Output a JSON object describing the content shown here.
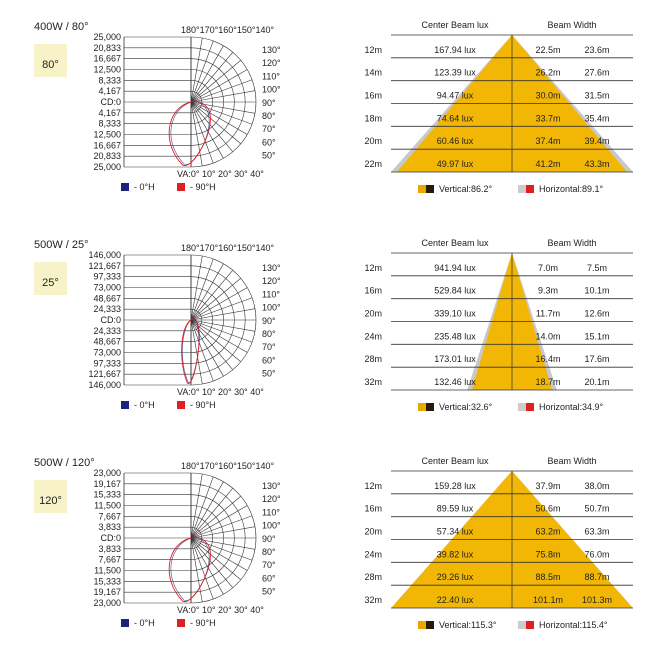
{
  "charts_meta": {
    "polar_top_angles": [
      "180°",
      "170°",
      "160°",
      "150°",
      "140°"
    ],
    "polar_right_angles": [
      "130°",
      "120°",
      "110°",
      "100°",
      "90°",
      "80°",
      "70°",
      "60°",
      "50°"
    ],
    "polar_bottom_label": "VA:0° 10° 20° 30° 40°",
    "legend_0h": "- 0°H",
    "legend_90h": "- 90°H",
    "beam_col1": "Center Beam lux",
    "beam_col2": "Beam Width"
  },
  "colors": {
    "beam_fill": "#f2b705",
    "beam_gray": "#c8c8c8",
    "vertical_swatch": "#e8a800",
    "horizontal_swatch": "#e02020",
    "polar_0h": "#1a237e",
    "polar_90h": "#e02020",
    "red_text": "#c2391f"
  },
  "chart_data": [
    {
      "type": "polar",
      "title": "400W / 80°",
      "badge": "80°",
      "r_ticks": [
        "25,000",
        "20,833",
        "16,667",
        "12,500",
        "8,333",
        "4,167",
        "CD:0",
        "4,167",
        "8,333",
        "12,500",
        "16,667",
        "20,833",
        "25,000"
      ],
      "rmax": 25000
    },
    {
      "type": "table",
      "title": "400W / 80° beam",
      "rows": [
        {
          "d": "12m",
          "lux": "167.94 lux",
          "v": "22.5m",
          "h": "23.6m"
        },
        {
          "d": "14m",
          "lux": "123.39 lux",
          "v": "26.2m",
          "h": "27.6m"
        },
        {
          "d": "16m",
          "lux": "94.47 lux",
          "v": "30.0m",
          "h": "31.5m"
        },
        {
          "d": "18m",
          "lux": "74.64 lux",
          "v": "33.7m",
          "h": "35.4m"
        },
        {
          "d": "20m",
          "lux": "60.46 lux",
          "v": "37.4m",
          "h": "39.4m"
        },
        {
          "d": "22m",
          "lux": "49.97 lux",
          "v": "41.2m",
          "h": "43.3m"
        }
      ],
      "vertical": "Vertical:86.2°",
      "horizontal": "Horizontal:89.1°",
      "vertical_angle": 86.2,
      "horizontal_angle": 89.1
    },
    {
      "type": "polar",
      "title": "500W / 25°",
      "badge": "25°",
      "r_ticks": [
        "146,000",
        "121,667",
        "97,333",
        "73,000",
        "48,667",
        "24,333",
        "CD:0",
        "24,333",
        "48,667",
        "73,000",
        "97,333",
        "121,667",
        "146,000"
      ],
      "rmax": 146000
    },
    {
      "type": "table",
      "title": "500W / 25° beam",
      "rows": [
        {
          "d": "12m",
          "lux": "941.94 lux",
          "v": "7.0m",
          "h": "7.5m"
        },
        {
          "d": "16m",
          "lux": "529.84 lux",
          "v": "9.3m",
          "h": "10.1m"
        },
        {
          "d": "20m",
          "lux": "339.10 lux",
          "v": "11.7m",
          "h": "12.6m"
        },
        {
          "d": "24m",
          "lux": "235.48 lux",
          "v": "14.0m",
          "h": "15.1m"
        },
        {
          "d": "28m",
          "lux": "173.01 lux",
          "v": "16.4m",
          "h": "17.6m"
        },
        {
          "d": "32m",
          "lux": "132.46 lux",
          "v": "18.7m",
          "h": "20.1m"
        }
      ],
      "vertical": "Vertical:32.6°",
      "horizontal": "Horizontal:34.9°",
      "vertical_angle": 32.6,
      "horizontal_angle": 34.9
    },
    {
      "type": "polar",
      "title": "500W / 120°",
      "badge": "120°",
      "r_ticks": [
        "23,000",
        "19,167",
        "15,333",
        "11,500",
        "7,667",
        "3,833",
        "CD:0",
        "3,833",
        "7,667",
        "11,500",
        "15,333",
        "19,167",
        "23,000"
      ],
      "rmax": 23000
    },
    {
      "type": "table",
      "title": "500W / 120° beam",
      "rows": [
        {
          "d": "12m",
          "lux": "159.28 lux",
          "v": "37.9m",
          "h": "38.0m"
        },
        {
          "d": "16m",
          "lux": "89.59 lux",
          "v": "50.6m",
          "h": "50.7m"
        },
        {
          "d": "20m",
          "lux": "57.34 lux",
          "v": "63.2m",
          "h": "63.3m"
        },
        {
          "d": "24m",
          "lux": "39.82 lux",
          "v": "75.8m",
          "h": "76.0m"
        },
        {
          "d": "28m",
          "lux": "29.26 lux",
          "v": "88.5m",
          "h": "88.7m"
        },
        {
          "d": "32m",
          "lux": "22.40 lux",
          "v": "101.1m",
          "h": "101.3m"
        }
      ],
      "vertical": "Vertical:115.3°",
      "horizontal": "Horizontal:115.4°",
      "vertical_angle": 115.3,
      "horizontal_angle": 115.4
    }
  ]
}
